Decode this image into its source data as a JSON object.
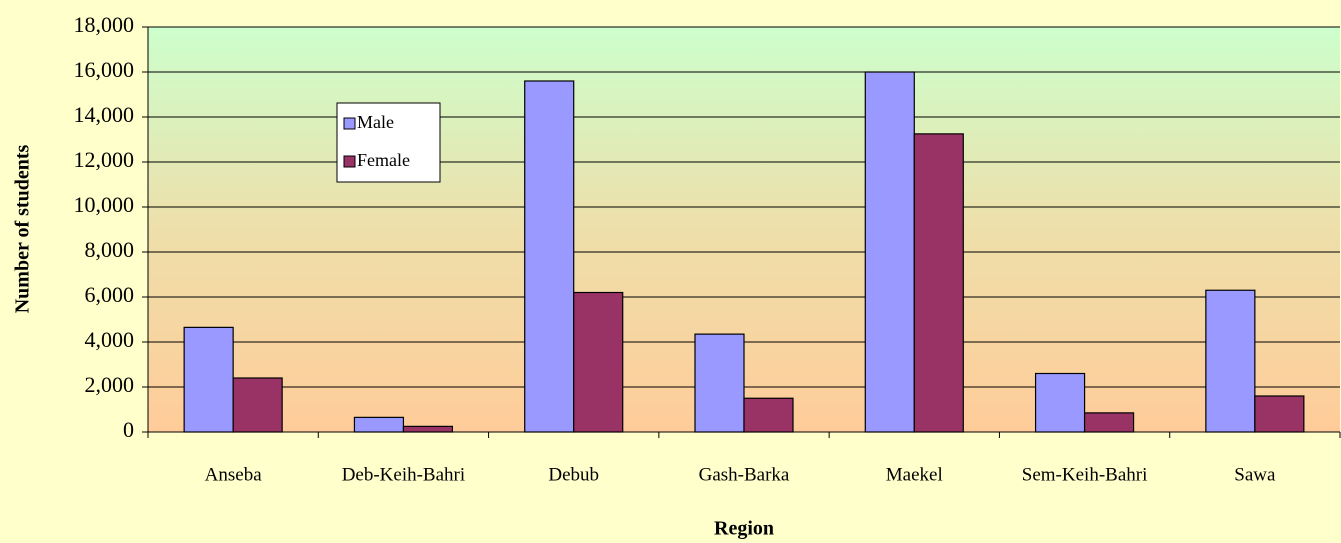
{
  "chart_data": {
    "type": "bar",
    "x_label": "Region",
    "y_label": "Number of students",
    "categories": [
      "Anseba",
      "Deb-Keih-Bahri",
      "Debub",
      "Gash-Barka",
      "Maekel",
      "Sem-Keih-Bahri",
      "Sawa"
    ],
    "series": [
      {
        "name": "Male",
        "color": "#9999ff",
        "values": [
          4650,
          650,
          15600,
          4350,
          16000,
          2600,
          6300
        ]
      },
      {
        "name": "Female",
        "color": "#993366",
        "values": [
          2400,
          250,
          6200,
          1500,
          13250,
          850,
          1600
        ]
      }
    ],
    "ylim": [
      0,
      18000
    ],
    "yticks": [
      0,
      {
        "value": 2000,
        "label": "2,000"
      },
      {
        "value": 4000,
        "label": "4,000"
      },
      {
        "value": 6000,
        "label": "6,000"
      },
      {
        "value": 8000,
        "label": "8,000"
      },
      {
        "value": 10000,
        "label": "10,000"
      },
      {
        "value": 12000,
        "label": "12,000"
      },
      {
        "value": 14000,
        "label": "14,000"
      },
      {
        "value": 16000,
        "label": "16,000"
      },
      {
        "value": 18000,
        "label": "18,000"
      }
    ],
    "grid": true,
    "legend": "upper left"
  }
}
